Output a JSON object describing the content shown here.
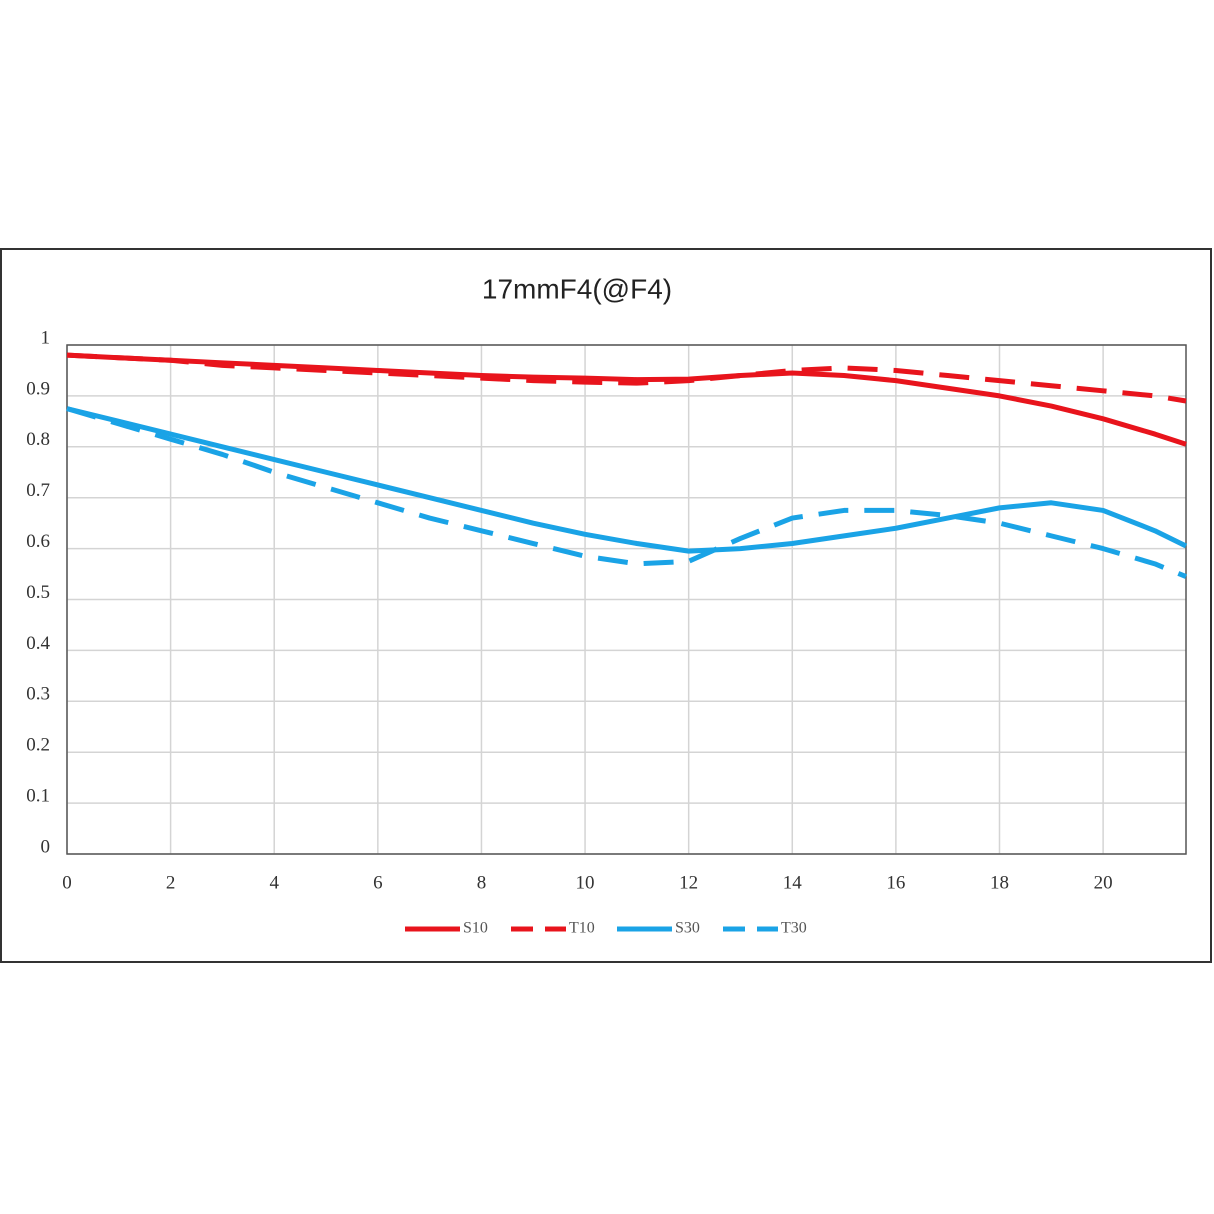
{
  "chart_data": {
    "type": "line",
    "title": "17mmF4(@F4)",
    "x": [
      0,
      1,
      2,
      3,
      4,
      5,
      6,
      7,
      8,
      9,
      10,
      11,
      12,
      13,
      14,
      15,
      16,
      17,
      18,
      19,
      20,
      21,
      21.6
    ],
    "series": [
      {
        "name": "S10",
        "color": "#e8141c",
        "line_style": "solid",
        "values": [
          0.98,
          0.975,
          0.97,
          0.965,
          0.96,
          0.955,
          0.95,
          0.945,
          0.94,
          0.937,
          0.935,
          0.932,
          0.933,
          0.94,
          0.945,
          0.94,
          0.93,
          0.915,
          0.9,
          0.88,
          0.855,
          0.825,
          0.805
        ]
      },
      {
        "name": "T10",
        "color": "#e8141c",
        "line_style": "dashed",
        "values": [
          0.98,
          0.975,
          0.97,
          0.96,
          0.955,
          0.95,
          0.945,
          0.94,
          0.935,
          0.93,
          0.927,
          0.925,
          0.93,
          0.94,
          0.95,
          0.955,
          0.95,
          0.94,
          0.93,
          0.92,
          0.91,
          0.9,
          0.89
        ]
      },
      {
        "name": "S30",
        "color": "#1aa3e6",
        "line_style": "solid",
        "values": [
          0.875,
          0.85,
          0.825,
          0.8,
          0.775,
          0.75,
          0.725,
          0.7,
          0.675,
          0.65,
          0.628,
          0.61,
          0.595,
          0.6,
          0.61,
          0.625,
          0.64,
          0.66,
          0.68,
          0.69,
          0.675,
          0.635,
          0.605
        ]
      },
      {
        "name": "T30",
        "color": "#1aa3e6",
        "line_style": "dashed",
        "values": [
          0.875,
          0.845,
          0.815,
          0.785,
          0.75,
          0.72,
          0.69,
          0.66,
          0.635,
          0.61,
          0.585,
          0.57,
          0.575,
          0.62,
          0.66,
          0.675,
          0.675,
          0.665,
          0.65,
          0.625,
          0.6,
          0.57,
          0.545
        ]
      }
    ],
    "xlim": [
      0,
      21.6
    ],
    "xticks": [
      0,
      2,
      4,
      6,
      8,
      10,
      12,
      14,
      16,
      18,
      20
    ],
    "ylim": [
      0,
      1
    ],
    "yticks": [
      0,
      0.1,
      0.2,
      0.3,
      0.4,
      0.5,
      0.6,
      0.7,
      0.8,
      0.9,
      1
    ],
    "grid": true,
    "legend": "bottom"
  }
}
